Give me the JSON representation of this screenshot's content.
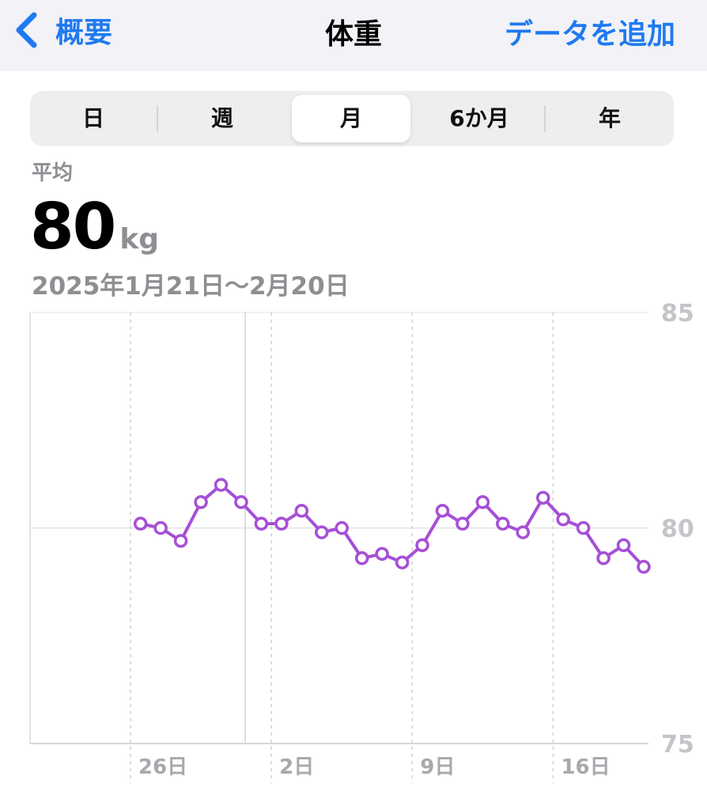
{
  "navbar": {
    "back_label": "概要",
    "title": "体重",
    "add_label": "データを追加"
  },
  "segments": [
    {
      "label": "日",
      "selected": false
    },
    {
      "label": "週",
      "selected": false
    },
    {
      "label": "月",
      "selected": true
    },
    {
      "label": "6か月",
      "selected": false
    },
    {
      "label": "年",
      "selected": false
    }
  ],
  "summary": {
    "label": "平均",
    "value": "80",
    "unit": "kg",
    "range": "2025年1月21日～2月20日"
  },
  "colors": {
    "accent": "#1f7af0",
    "series": "#a64fd6",
    "secondary_text": "#8e8e93"
  },
  "chart_data": {
    "type": "line",
    "y_ticks": [
      "85",
      "80",
      "75"
    ],
    "ylim": [
      75,
      85
    ],
    "x_ticks": [
      {
        "day": 6,
        "label": "26日"
      },
      {
        "day": 13,
        "label": "2日"
      },
      {
        "day": 20,
        "label": "9日"
      },
      {
        "day": 27,
        "label": "16日"
      }
    ],
    "xlim": [
      1,
      31
    ],
    "series": [
      {
        "points": [
          {
            "day": 6.5,
            "y": 80.1
          },
          {
            "day": 7.5,
            "y": 80.0
          },
          {
            "day": 8.5,
            "y": 79.7
          },
          {
            "day": 9.5,
            "y": 80.6
          },
          {
            "day": 10.5,
            "y": 81.0
          },
          {
            "day": 11.5,
            "y": 80.6
          },
          {
            "day": 12.5,
            "y": 80.1
          },
          {
            "day": 13.5,
            "y": 80.1
          },
          {
            "day": 14.5,
            "y": 80.4
          },
          {
            "day": 15.5,
            "y": 79.9
          },
          {
            "day": 16.5,
            "y": 80.0
          },
          {
            "day": 17.5,
            "y": 79.3
          },
          {
            "day": 18.5,
            "y": 79.4
          },
          {
            "day": 19.5,
            "y": 79.2
          },
          {
            "day": 20.5,
            "y": 79.6
          },
          {
            "day": 21.5,
            "y": 80.4
          },
          {
            "day": 22.5,
            "y": 80.1
          },
          {
            "day": 23.5,
            "y": 80.6
          },
          {
            "day": 24.5,
            "y": 80.1
          },
          {
            "day": 25.5,
            "y": 79.9
          },
          {
            "day": 26.5,
            "y": 80.7
          },
          {
            "day": 27.5,
            "y": 80.2
          },
          {
            "day": 28.5,
            "y": 80.0
          },
          {
            "day": 29.5,
            "y": 79.3
          },
          {
            "day": 30.5,
            "y": 79.6
          },
          {
            "day": 31.5,
            "y": 79.1
          }
        ]
      }
    ]
  }
}
